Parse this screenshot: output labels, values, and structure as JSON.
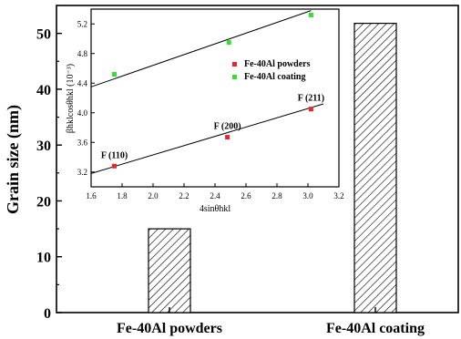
{
  "chart_data": [
    {
      "type": "bar",
      "ylabel": "Grain size (nm)",
      "categories": [
        "Fe-40Al powders",
        "Fe-40Al coating"
      ],
      "values": [
        15,
        51.8
      ],
      "ylim": [
        0,
        55
      ],
      "yticks": [
        0,
        10,
        20,
        30,
        40,
        50
      ],
      "bar_fill": "hatched",
      "grid": false
    },
    {
      "type": "scatter",
      "xlabel": "4sinθhkl",
      "ylabel": "βhklcosθhkl (10⁻³)",
      "xlim": [
        1.6,
        3.2
      ],
      "ylim": [
        3.0,
        5.4
      ],
      "xticks": [
        "1.6",
        "1.8",
        "2.0",
        "2.2",
        "2.4",
        "2.6",
        "2.8",
        "3.0",
        "3.2"
      ],
      "yticks": [
        "3.2",
        "3.6",
        "4.0",
        "4.4",
        "4.8",
        "5.2"
      ],
      "legend": "top-right",
      "series": [
        {
          "name": "Fe-40Al powders",
          "color": "#e8262b",
          "points": [
            [
              1.75,
              3.28
            ],
            [
              2.48,
              3.67
            ],
            [
              3.02,
              4.05
            ]
          ],
          "point_labels": [
            "F (110)",
            "F (200)",
            "F (211)"
          ],
          "fit_line": [
            [
              1.6,
              3.18
            ],
            [
              3.1,
              4.12
            ]
          ]
        },
        {
          "name": "Fe-40Al coating",
          "color": "#33e033",
          "points": [
            [
              1.75,
              4.52
            ],
            [
              2.49,
              4.95
            ],
            [
              3.02,
              5.32
            ]
          ],
          "fit_line": [
            [
              1.6,
              4.35
            ],
            [
              3.02,
              5.38
            ]
          ]
        }
      ]
    }
  ]
}
